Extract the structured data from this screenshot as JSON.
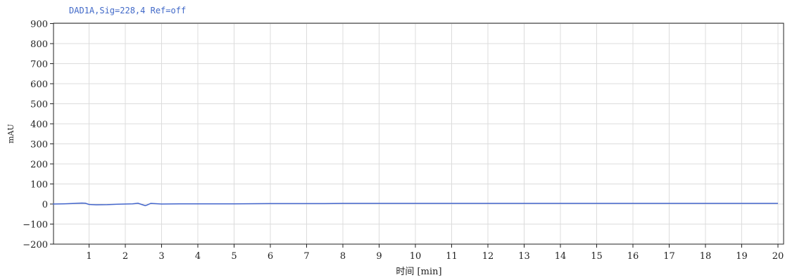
{
  "chart_data": {
    "type": "line",
    "title": "DAD1A,Sig=228,4  Ref=off",
    "xlabel": "时间 [min]",
    "ylabel": "mAU",
    "xlim": [
      0,
      20.3
    ],
    "ylim": [
      -210,
      900
    ],
    "xticks": [
      1,
      2,
      3,
      4,
      5,
      6,
      7,
      8,
      9,
      10,
      11,
      12,
      13,
      14,
      15,
      16,
      17,
      18,
      19,
      20
    ],
    "yticks": [
      900,
      800,
      700,
      600,
      500,
      400,
      300,
      200,
      100,
      0,
      -100,
      -200
    ],
    "ytick_labels": [
      "900",
      "800",
      "700",
      "600",
      "500",
      "400",
      "300",
      "200",
      "100",
      "0",
      "−100",
      "−200"
    ],
    "grid": true,
    "series": [
      {
        "color": "#4466cc",
        "x": [
          0,
          0.3,
          0.6,
          0.8,
          0.9,
          1.0,
          1.2,
          1.5,
          1.8,
          2.0,
          2.2,
          2.35,
          2.45,
          2.55,
          2.6,
          2.7,
          2.8,
          3.0,
          3.5,
          4.0,
          5.0,
          6.0,
          7.0,
          7.5,
          8.0,
          9.0,
          10.0,
          12.0,
          14.0,
          16.0,
          18.0,
          20.0
        ],
        "values": [
          0,
          1,
          3,
          5,
          4,
          -2,
          -4,
          -3,
          -1,
          0,
          1,
          4,
          -2,
          -8,
          -5,
          3,
          2,
          0,
          1,
          1,
          1,
          2,
          2,
          2,
          3,
          3,
          3,
          3,
          3,
          3,
          3,
          3
        ]
      }
    ]
  }
}
